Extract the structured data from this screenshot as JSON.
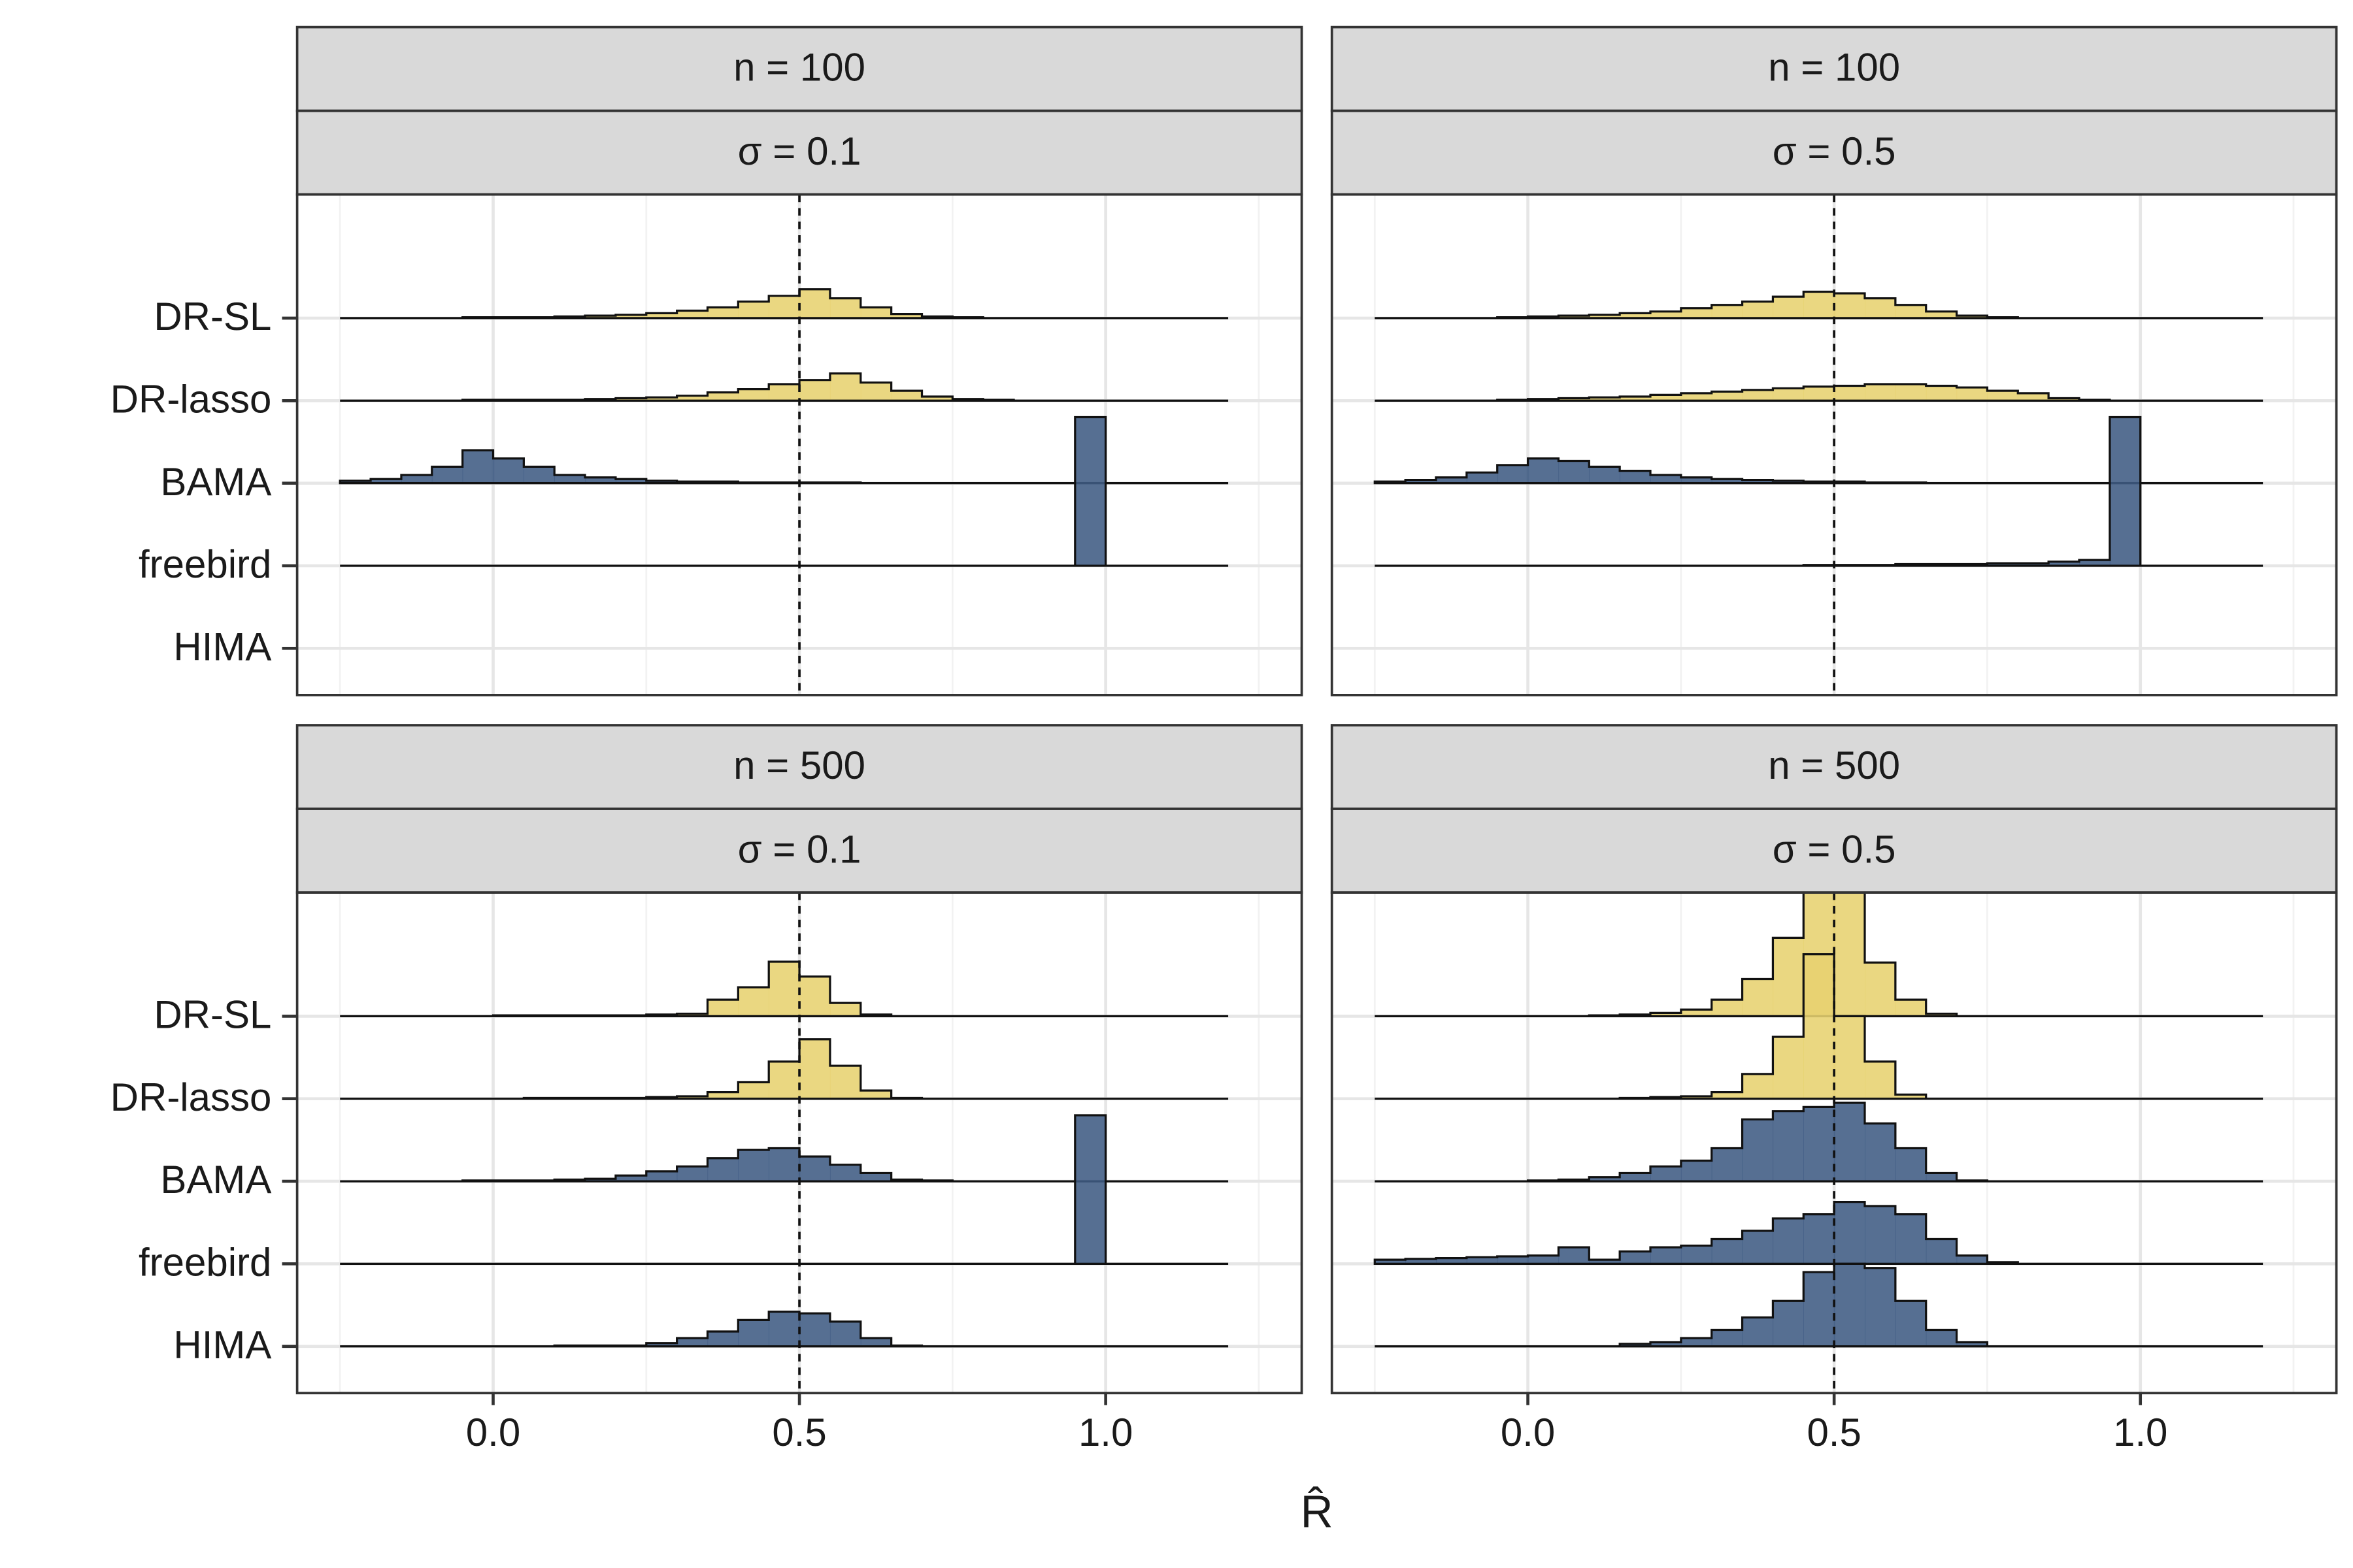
{
  "chart_data": {
    "type": "ridgeline",
    "xlabel": "R̂",
    "categories": [
      "DR-SL",
      "DR-lasso",
      "BAMA",
      "freebird",
      "HIMA"
    ],
    "bins": [
      -0.25,
      -0.2,
      -0.15,
      -0.1,
      -0.05,
      0,
      0.05,
      0.1,
      0.15,
      0.2,
      0.25,
      0.3,
      0.35,
      0.4,
      0.45,
      0.5,
      0.55,
      0.6,
      0.65,
      0.7,
      0.75,
      0.8,
      0.85,
      0.9,
      0.95,
      1,
      1.05,
      1.1,
      1.15,
      1.2
    ],
    "xlim": [
      -0.32,
      1.32
    ],
    "xticks": [
      {
        "value": 0,
        "label": "0.0"
      },
      0.5,
      {
        "value": 1,
        "label": "1.0"
      }
    ],
    "xminor_ticks": [
      -0.25,
      0.25,
      0.75,
      1.25
    ],
    "ref_line": 0.5,
    "grid": true,
    "panels": [
      {
        "strips": [
          "n = 100",
          "σ = 0.1"
        ],
        "series": [
          {
            "name": "DR-SL",
            "color": "#e7d26f",
            "values": [
              0,
              0,
              0,
              0,
              0.01,
              0.01,
              0.01,
              0.02,
              0.03,
              0.04,
              0.06,
              0.09,
              0.13,
              0.2,
              0.27,
              0.35,
              0.24,
              0.13,
              0.05,
              0.02,
              0.01,
              0,
              0,
              0,
              0,
              0,
              0,
              0,
              0
            ]
          },
          {
            "name": "DR-lasso",
            "color": "#e7d26f",
            "values": [
              0,
              0,
              0,
              0,
              0.01,
              0.01,
              0.01,
              0.01,
              0.02,
              0.03,
              0.04,
              0.06,
              0.1,
              0.14,
              0.2,
              0.25,
              0.33,
              0.22,
              0.12,
              0.05,
              0.02,
              0.01,
              0,
              0,
              0,
              0,
              0,
              0,
              0
            ]
          },
          {
            "name": "BAMA",
            "color": "#3f5b83",
            "values": [
              0.03,
              0.05,
              0.1,
              0.2,
              0.4,
              0.3,
              0.2,
              0.1,
              0.07,
              0.05,
              0.03,
              0.02,
              0.02,
              0.01,
              0.01,
              0.01,
              0.01,
              0,
              0,
              0,
              0,
              0,
              0,
              0,
              0,
              0,
              0,
              0,
              0
            ]
          },
          {
            "name": "freebird",
            "color": "#3f5b83",
            "values": [
              0,
              0,
              0,
              0,
              0,
              0,
              0,
              0,
              0,
              0,
              0,
              0,
              0,
              0,
              0,
              0,
              0,
              0,
              0,
              0,
              0,
              0,
              0,
              0,
              1.8,
              0,
              0,
              0,
              0
            ]
          }
        ]
      },
      {
        "strips": [
          "n = 100",
          "σ = 0.5"
        ],
        "series": [
          {
            "name": "DR-SL",
            "color": "#e7d26f",
            "values": [
              0,
              0,
              0,
              0,
              0.01,
              0.02,
              0.03,
              0.04,
              0.06,
              0.08,
              0.12,
              0.16,
              0.2,
              0.26,
              0.32,
              0.3,
              0.24,
              0.16,
              0.08,
              0.03,
              0.01,
              0,
              0,
              0,
              0,
              0,
              0,
              0,
              0
            ]
          },
          {
            "name": "DR-lasso",
            "color": "#e7d26f",
            "values": [
              0,
              0,
              0,
              0,
              0.01,
              0.02,
              0.03,
              0.04,
              0.05,
              0.07,
              0.09,
              0.11,
              0.13,
              0.15,
              0.17,
              0.18,
              0.2,
              0.2,
              0.18,
              0.16,
              0.12,
              0.09,
              0.03,
              0.01,
              0,
              0,
              0,
              0,
              0
            ]
          },
          {
            "name": "BAMA",
            "color": "#3f5b83",
            "values": [
              0.02,
              0.04,
              0.07,
              0.13,
              0.22,
              0.3,
              0.27,
              0.2,
              0.15,
              0.1,
              0.07,
              0.05,
              0.04,
              0.03,
              0.02,
              0.02,
              0.01,
              0.01,
              0,
              0,
              0,
              0,
              0,
              0,
              0,
              0,
              0,
              0,
              0
            ]
          },
          {
            "name": "freebird",
            "color": "#3f5b83",
            "values": [
              0,
              0,
              0,
              0,
              0,
              0,
              0,
              0,
              0,
              0,
              0,
              0,
              0,
              0,
              0.01,
              0.01,
              0.01,
              0.02,
              0.02,
              0.02,
              0.03,
              0.03,
              0.05,
              0.07,
              1.8,
              0,
              0,
              0,
              0
            ]
          }
        ]
      },
      {
        "strips": [
          "n = 500",
          "σ = 0.1"
        ],
        "series": [
          {
            "name": "DR-SL",
            "color": "#e7d26f",
            "values": [
              0,
              0,
              0,
              0,
              0,
              0.01,
              0.01,
              0.01,
              0.01,
              0.01,
              0.02,
              0.03,
              0.2,
              0.35,
              0.66,
              0.48,
              0.16,
              0.02,
              0,
              0,
              0,
              0,
              0,
              0,
              0,
              0,
              0,
              0,
              0
            ]
          },
          {
            "name": "DR-lasso",
            "color": "#e7d26f",
            "values": [
              0,
              0,
              0,
              0,
              0,
              0,
              0.01,
              0.01,
              0.01,
              0.01,
              0.02,
              0.03,
              0.08,
              0.2,
              0.45,
              0.72,
              0.4,
              0.1,
              0.01,
              0,
              0,
              0,
              0,
              0,
              0,
              0,
              0,
              0,
              0
            ]
          },
          {
            "name": "BAMA",
            "color": "#3f5b83",
            "values": [
              0,
              0,
              0,
              0,
              0.01,
              0.01,
              0.01,
              0.02,
              0.03,
              0.07,
              0.12,
              0.18,
              0.28,
              0.38,
              0.4,
              0.3,
              0.2,
              0.1,
              0.02,
              0.01,
              0,
              0,
              0,
              0,
              0,
              0,
              0,
              0,
              0
            ]
          },
          {
            "name": "freebird",
            "color": "#3f5b83",
            "values": [
              0,
              0,
              0,
              0,
              0,
              0,
              0,
              0,
              0,
              0,
              0,
              0,
              0,
              0,
              0,
              0,
              0,
              0,
              0,
              0,
              0,
              0,
              0,
              0,
              1.8,
              0,
              0,
              0,
              0
            ]
          },
          {
            "name": "HIMA",
            "color": "#3f5b83",
            "values": [
              0,
              0,
              0,
              0,
              0,
              0,
              0,
              0.01,
              0.01,
              0.01,
              0.04,
              0.1,
              0.18,
              0.32,
              0.42,
              0.4,
              0.3,
              0.1,
              0.01,
              0,
              0,
              0,
              0,
              0,
              0,
              0,
              0,
              0,
              0
            ]
          }
        ]
      },
      {
        "strips": [
          "n = 500",
          "σ = 0.5"
        ],
        "series": [
          {
            "name": "DR-SL",
            "color": "#e7d26f",
            "values": [
              0,
              0,
              0,
              0,
              0,
              0,
              0,
              0.01,
              0.02,
              0.04,
              0.08,
              0.2,
              0.45,
              0.95,
              1.6,
              1.6,
              0.65,
              0.2,
              0.03,
              0,
              0,
              0,
              0,
              0,
              0,
              0,
              0,
              0,
              0
            ]
          },
          {
            "name": "DR-lasso",
            "color": "#e7d26f",
            "values": [
              0,
              0,
              0,
              0,
              0,
              0,
              0,
              0,
              0.01,
              0.02,
              0.03,
              0.08,
              0.3,
              0.75,
              1.75,
              1.0,
              0.45,
              0.05,
              0,
              0,
              0,
              0,
              0,
              0,
              0,
              0,
              0,
              0,
              0
            ]
          },
          {
            "name": "BAMA",
            "color": "#3f5b83",
            "values": [
              0,
              0,
              0,
              0,
              0,
              0.01,
              0.02,
              0.05,
              0.1,
              0.18,
              0.25,
              0.4,
              0.75,
              0.85,
              0.9,
              0.95,
              0.7,
              0.4,
              0.1,
              0.01,
              0,
              0,
              0,
              0,
              0,
              0,
              0,
              0,
              0
            ]
          },
          {
            "name": "freebird",
            "color": "#3f5b83",
            "values": [
              0.05,
              0.06,
              0.07,
              0.08,
              0.09,
              0.1,
              0.2,
              0.05,
              0.15,
              0.2,
              0.22,
              0.3,
              0.4,
              0.55,
              0.6,
              0.75,
              0.7,
              0.6,
              0.3,
              0.1,
              0.02,
              0,
              0,
              0,
              0,
              0,
              0,
              0,
              0
            ]
          },
          {
            "name": "HIMA",
            "color": "#3f5b83",
            "values": [
              0,
              0,
              0,
              0,
              0,
              0,
              0,
              0,
              0.03,
              0.05,
              0.1,
              0.2,
              0.35,
              0.55,
              0.9,
              1.0,
              0.95,
              0.55,
              0.2,
              0.05,
              0,
              0,
              0,
              0,
              0,
              0,
              0,
              0,
              0
            ]
          }
        ]
      }
    ]
  }
}
